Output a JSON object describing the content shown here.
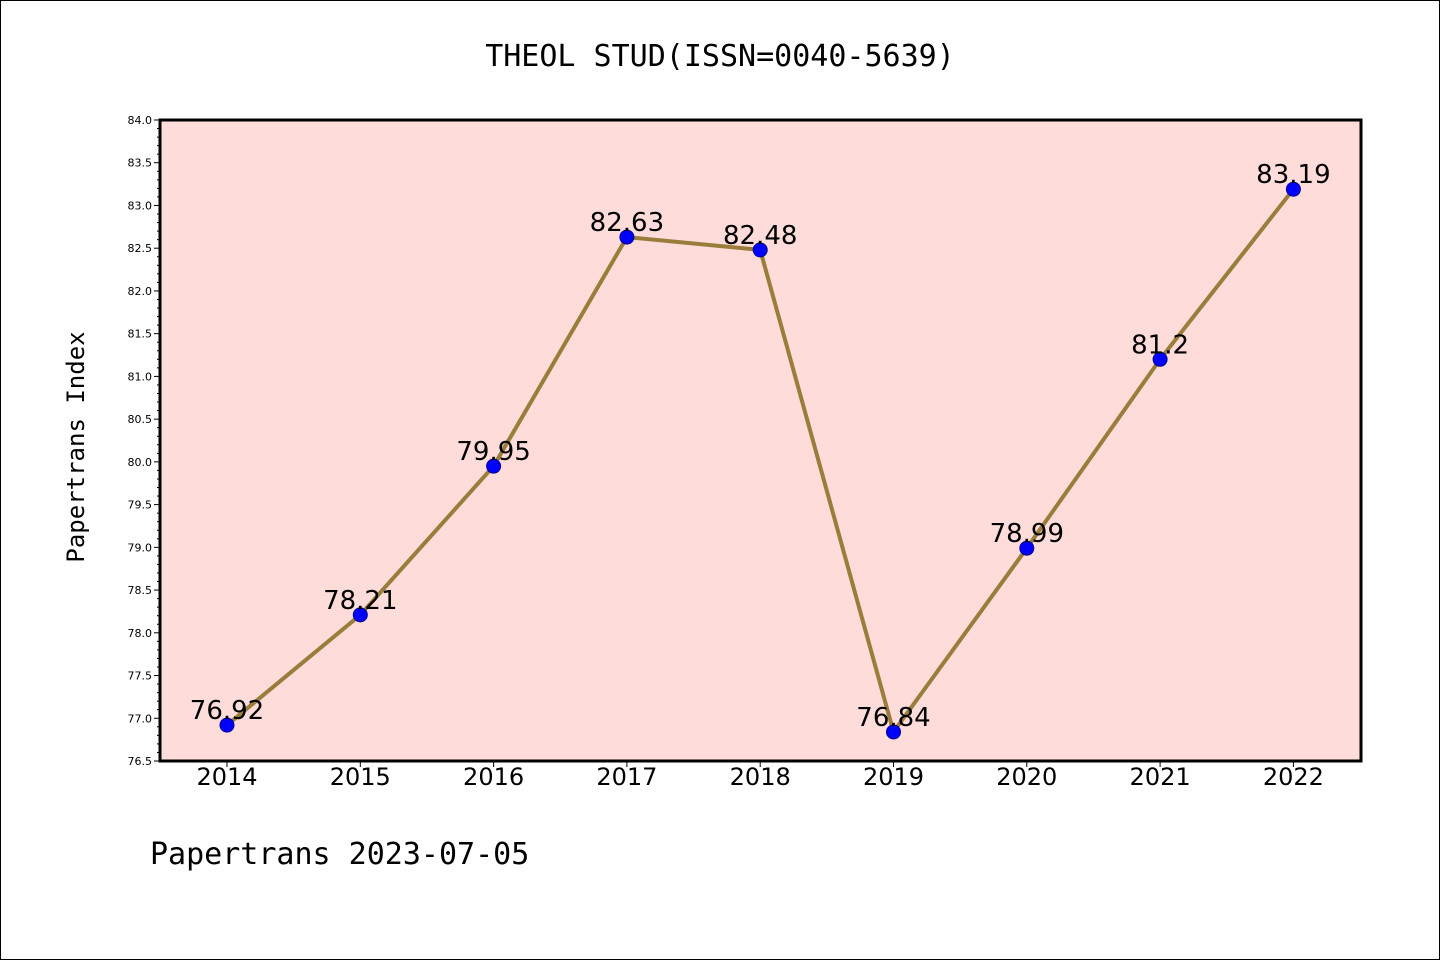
{
  "chart_data": {
    "type": "line",
    "title": "THEOL STUD(ISSN=0040-5639)",
    "xlabel": "",
    "ylabel": "Papertrans Index",
    "x": [
      "2014",
      "2015",
      "2016",
      "2017",
      "2018",
      "2019",
      "2020",
      "2021",
      "2022"
    ],
    "values": [
      76.92,
      78.21,
      79.95,
      82.63,
      82.48,
      76.84,
      78.99,
      81.2,
      83.19
    ],
    "data_labels": [
      "76.92",
      "78.21",
      "79.95",
      "82.63",
      "82.48",
      "76.84",
      "78.99",
      "81.2",
      "83.19"
    ],
    "ylim": [
      76.5,
      84.0
    ],
    "y_ticks": [
      "76.5",
      "77.0",
      "77.5",
      "78.0",
      "78.5",
      "79.0",
      "79.5",
      "80.0",
      "80.5",
      "81.0",
      "81.5",
      "82.0",
      "82.5",
      "83.0",
      "83.5",
      "84.0"
    ],
    "grid": false,
    "legend": "none",
    "footer": "Papertrans 2023-07-05",
    "colors": {
      "plot_background": "#fddcda",
      "line": "#9a7d3a",
      "marker": "#0000ff",
      "marker_edge": "#00008b",
      "axes": "#000000"
    }
  }
}
